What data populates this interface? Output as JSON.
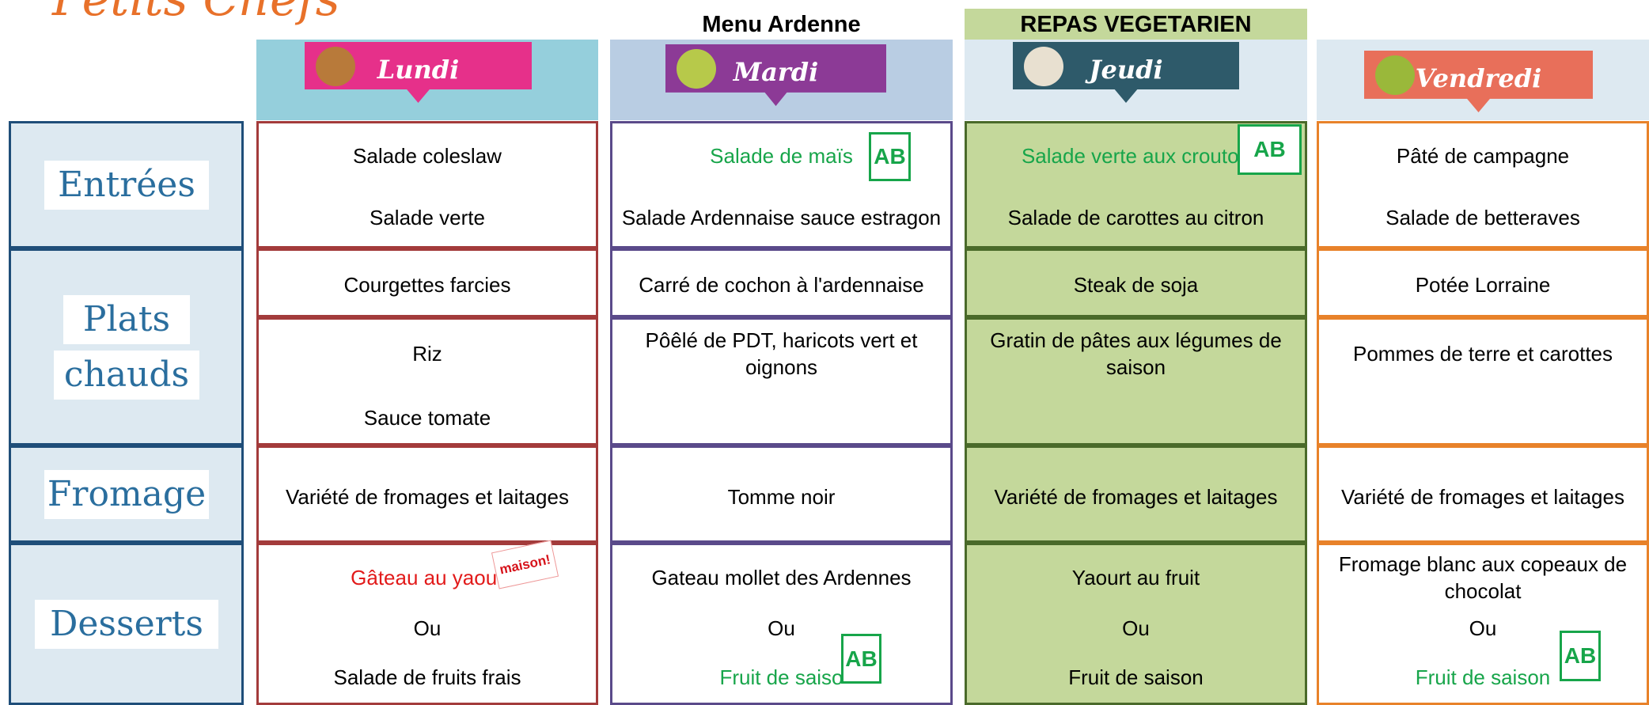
{
  "brand": "Petits Chefs",
  "notes": {
    "mardi": "Menu Ardenne",
    "jeudi": "REPAS VEGETARIEN"
  },
  "days": [
    "Lundi",
    "Mardi",
    "Jeudi",
    "Vendredi"
  ],
  "badges": {
    "bio": "AB",
    "homemade": "maison!"
  },
  "sections": [
    {
      "labels": [
        "Entrées"
      ],
      "rows": [
        [
          [
            "Salade coleslaw",
            "Salade verte"
          ],
          [
            "Salade de maïs",
            "Salade Ardennaise sauce estragon"
          ],
          [
            "Salade verte aux crouton",
            "Salade de carottes au citron"
          ],
          [
            "Pâté de campagne",
            "Salade de betteraves"
          ]
        ]
      ]
    },
    {
      "labels": [
        "Plats",
        "chauds"
      ],
      "rows": [
        [
          [
            "Courgettes farcies"
          ],
          [
            "Carré de cochon à l'ardennaise"
          ],
          [
            "Steak de soja"
          ],
          [
            "Potée Lorraine"
          ]
        ],
        [
          [
            "Riz",
            "Sauce tomate"
          ],
          [
            "Pôêlé de PDT, haricots vert et oignons"
          ],
          [
            "Gratin de pâtes aux légumes de saison"
          ],
          [
            "Pommes de terre et carottes"
          ]
        ]
      ]
    },
    {
      "labels": [
        "Fromage"
      ],
      "rows": [
        [
          [
            "Variété de fromages et laitages"
          ],
          [
            "Tomme noir"
          ],
          [
            "Variété de fromages et laitages"
          ],
          [
            "Variété de fromages et laitages"
          ]
        ]
      ]
    },
    {
      "labels": [
        "Desserts"
      ],
      "rows": [
        [
          [
            "Gâteau au yaour",
            "Ou",
            "Salade de fruits frais"
          ],
          [
            "Gateau mollet des Ardennes",
            "Ou",
            "Fruit de saiso"
          ],
          [
            "Yaourt au fruit",
            "Ou",
            "Fruit de saison"
          ],
          [
            "Fromage blanc aux copeaux de chocolat",
            "Ou",
            "Fruit de saison"
          ]
        ]
      ]
    }
  ]
}
